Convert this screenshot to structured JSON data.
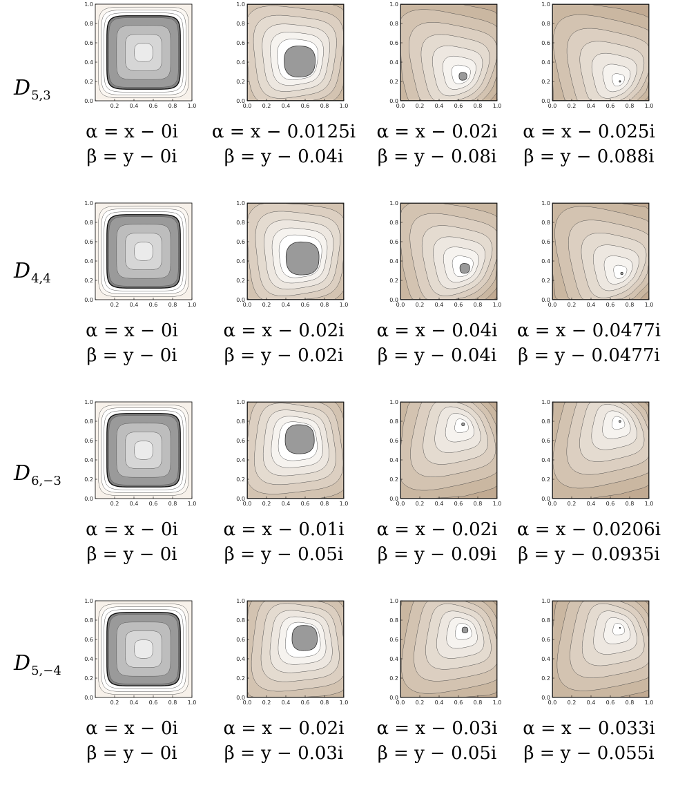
{
  "rows": [
    {
      "label_base": "D",
      "label_sub": "5,3",
      "panels": [
        {
          "alpha": "α = x − 0i",
          "beta": "β = y − 0i",
          "center": [
            0.5,
            0.5
          ],
          "core": 0.38,
          "shade": "gray",
          "skew": 0.0
        },
        {
          "alpha": "α = x − 0.0125i",
          "beta": "β = y − 0.04i",
          "center": [
            0.55,
            0.4
          ],
          "core": 0.16,
          "shade": "brown",
          "skew": 0.4
        },
        {
          "alpha": "α = x − 0.02i",
          "beta": "β = y − 0.08i",
          "center": [
            0.65,
            0.25
          ],
          "core": 0.04,
          "shade": "brown",
          "skew": 0.8
        },
        {
          "alpha": "α = x − 0.025i",
          "beta": "β = y − 0.088i",
          "center": [
            0.7,
            0.2
          ],
          "core": 0.008,
          "shade": "brown",
          "skew": 0.9
        }
      ]
    },
    {
      "label_base": "D",
      "label_sub": "4,4",
      "panels": [
        {
          "alpha": "α = x − 0i",
          "beta": "β = y − 0i",
          "center": [
            0.5,
            0.5
          ],
          "core": 0.38,
          "shade": "gray",
          "skew": 0.0
        },
        {
          "alpha": "α = x − 0.02i",
          "beta": "β = y − 0.02i",
          "center": [
            0.58,
            0.42
          ],
          "core": 0.17,
          "shade": "brown",
          "skew": 0.4
        },
        {
          "alpha": "α = x − 0.04i",
          "beta": "β = y − 0.04i",
          "center": [
            0.67,
            0.32
          ],
          "core": 0.05,
          "shade": "brown",
          "skew": 0.8
        },
        {
          "alpha": "α = x − 0.0477i",
          "beta": "β = y − 0.0477i",
          "center": [
            0.72,
            0.27
          ],
          "core": 0.012,
          "shade": "brown",
          "skew": 0.9
        }
      ]
    },
    {
      "label_base": "D",
      "label_sub": "6,−3",
      "panels": [
        {
          "alpha": "α = x − 0i",
          "beta": "β = y − 0i",
          "center": [
            0.5,
            0.5
          ],
          "core": 0.38,
          "shade": "gray",
          "skew": 0.0
        },
        {
          "alpha": "α = x − 0.01i",
          "beta": "β = y − 0.05i",
          "center": [
            0.55,
            0.62
          ],
          "core": 0.15,
          "shade": "brownlow",
          "skew": 0.4
        },
        {
          "alpha": "α = x − 0.02i",
          "beta": "β = y − 0.09i",
          "center": [
            0.65,
            0.77
          ],
          "core": 0.015,
          "shade": "brownlow",
          "skew": 0.85
        },
        {
          "alpha": "α = x − 0.0206i",
          "beta": "β = y − 0.0935i",
          "center": [
            0.7,
            0.8
          ],
          "core": 0.01,
          "shade": "brownlow",
          "skew": 0.9
        }
      ]
    },
    {
      "label_base": "D",
      "label_sub": "5,−4",
      "panels": [
        {
          "alpha": "α = x − 0i",
          "beta": "β = y − 0i",
          "center": [
            0.5,
            0.5
          ],
          "core": 0.38,
          "shade": "gray",
          "skew": 0.0
        },
        {
          "alpha": "α = x − 0.02i",
          "beta": "β = y − 0.03i",
          "center": [
            0.6,
            0.62
          ],
          "core": 0.13,
          "shade": "brownlow",
          "skew": 0.4
        },
        {
          "alpha": "α = x − 0.03i",
          "beta": "β = y − 0.05i",
          "center": [
            0.67,
            0.7
          ],
          "core": 0.03,
          "shade": "brownlow",
          "skew": 0.7
        },
        {
          "alpha": "α = x − 0.033i",
          "beta": "β = y − 0.055i",
          "center": [
            0.7,
            0.72
          ],
          "core": 0.006,
          "shade": "brownlow",
          "skew": 0.75
        }
      ]
    }
  ],
  "axis_ticks": [
    "0.0",
    "0.2",
    "0.4",
    "0.6",
    "0.8",
    "1.0"
  ]
}
